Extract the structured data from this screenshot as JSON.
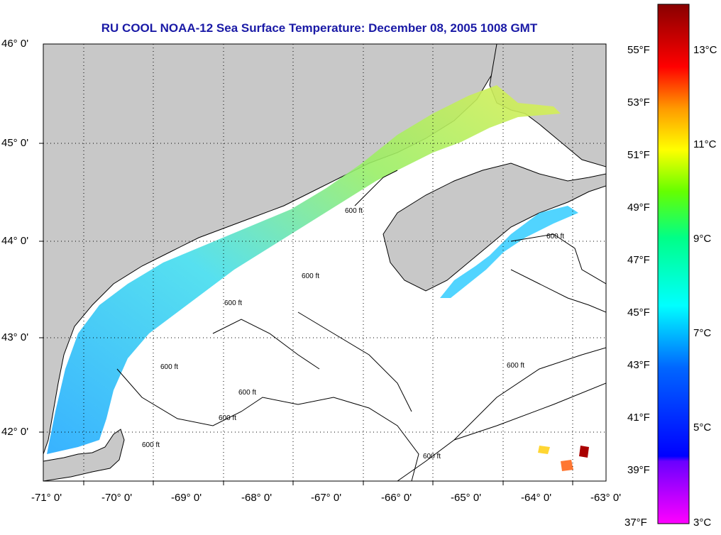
{
  "title": "RU COOL  NOAA-12  Sea Surface Temperature:  December 08, 2005 1008 GMT",
  "map": {
    "lat_labels": [
      "46° 0'",
      "45° 0'",
      "44° 0'",
      "43° 0'",
      "42° 0'"
    ],
    "lon_labels": [
      "-71° 0'",
      "-70° 0'",
      "-69° 0'",
      "-68° 0'",
      "-67° 0'",
      "-66° 0'",
      "-65° 0'",
      "-64° 0'",
      "-63° 0'"
    ],
    "contour_label": "600 ft",
    "colors": {
      "land": "#c8c8c8",
      "ocean": "#ffffff",
      "coastline": "#000000",
      "grid": "#000000"
    }
  },
  "colorbar": {
    "fahrenheit_labels": [
      "55°F",
      "53°F",
      "51°F",
      "49°F",
      "47°F",
      "45°F",
      "43°F",
      "41°F",
      "39°F",
      "37°F"
    ],
    "celsius_labels": [
      "13°C",
      "11°C",
      "9°C",
      "7°C",
      "5°C",
      "3°C"
    ],
    "colors": [
      "#ff00ff",
      "#7a00ff",
      "#0000ff",
      "#0088ff",
      "#00ffff",
      "#00ff88",
      "#88ff00",
      "#ffff00",
      "#ffaa00",
      "#ff3300",
      "#cc0000",
      "#880000"
    ]
  }
}
